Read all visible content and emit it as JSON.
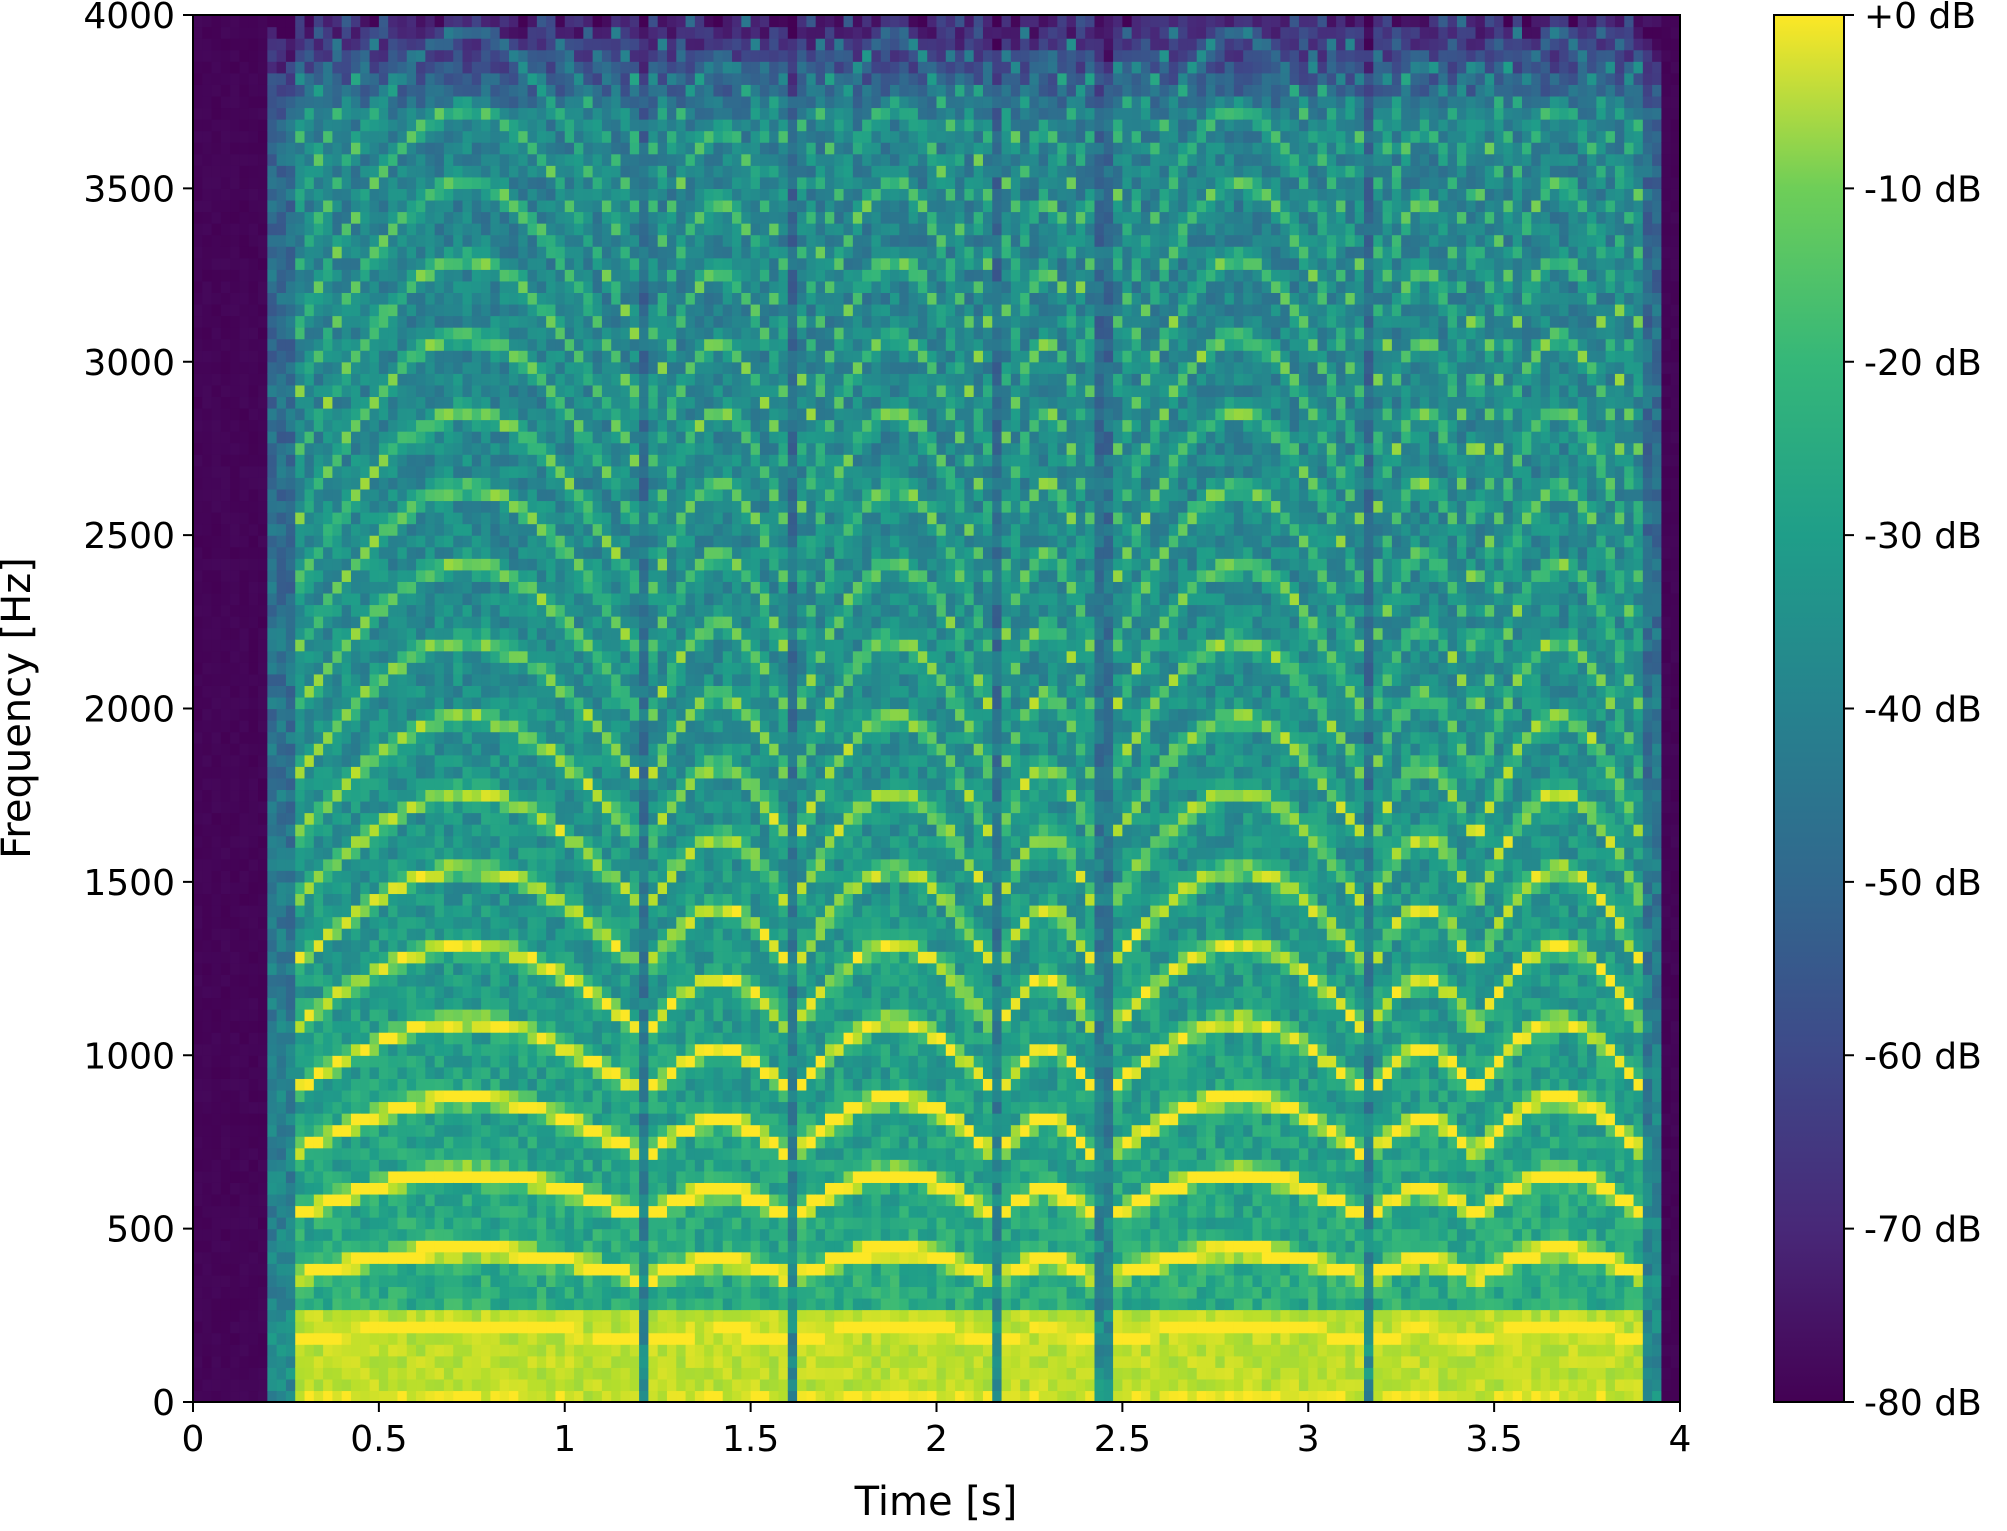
{
  "chart_data": {
    "type": "heatmap",
    "subtype": "spectrogram",
    "title": "",
    "xlabel": "Time [s]",
    "ylabel": "Frequency [Hz]",
    "xlim": [
      0,
      4
    ],
    "ylim": [
      0,
      4000
    ],
    "x_ticks": [
      0,
      0.5,
      1,
      1.5,
      2,
      2.5,
      3,
      3.5,
      4
    ],
    "x_tick_labels": [
      "0",
      "0.5",
      "1",
      "1.5",
      "2",
      "2.5",
      "3",
      "3.5",
      "4"
    ],
    "y_ticks": [
      0,
      500,
      1000,
      1500,
      2000,
      2500,
      3000,
      3500,
      4000
    ],
    "y_tick_labels": [
      "0",
      "500",
      "1000",
      "1500",
      "2000",
      "2500",
      "3000",
      "3500",
      "4000"
    ],
    "colormap": "viridis",
    "colorbar": {
      "range_db": [
        -80,
        0
      ],
      "ticks": [
        0,
        -10,
        -20,
        -30,
        -40,
        -50,
        -60,
        -70,
        -80
      ],
      "tick_labels": [
        "+0 dB",
        "-10 dB",
        "-20 dB",
        "-30 dB",
        "-40 dB",
        "-50 dB",
        "-60 dB",
        "-70 dB",
        "-80 dB"
      ]
    },
    "voiced_segments_s": [
      [
        0.27,
        1.2
      ],
      [
        1.23,
        1.6
      ],
      [
        1.62,
        2.15
      ],
      [
        2.17,
        2.42
      ],
      [
        2.47,
        3.15
      ],
      [
        3.17,
        3.45
      ],
      [
        3.45,
        3.9
      ]
    ],
    "fundamental_hz_approx": 180,
    "grid": false,
    "legend": "none"
  }
}
